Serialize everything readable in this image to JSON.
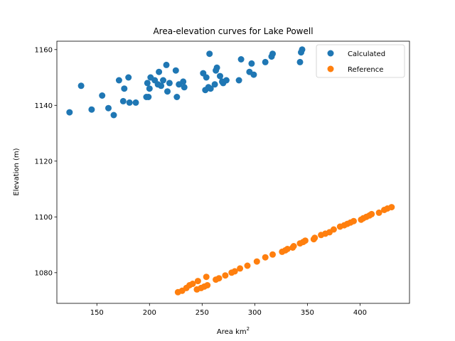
{
  "chart_data": {
    "type": "scatter",
    "title": "Area-elevation curves for Lake Powell",
    "xlabel": "Area km",
    "xlabel_superscript": "2",
    "ylabel": "Elevation (m)",
    "xlim": [
      112,
      447
    ],
    "ylim": [
      1069,
      1163
    ],
    "xticks": [
      150,
      200,
      250,
      300,
      350,
      400
    ],
    "yticks": [
      1080,
      1100,
      1120,
      1140,
      1160
    ],
    "grid": false,
    "legend_position": "top-right",
    "series": [
      {
        "name": "Calculated",
        "color": "#1f77b4",
        "points": [
          [
            124,
            1137.5
          ],
          [
            135,
            1147
          ],
          [
            145,
            1138.5
          ],
          [
            155,
            1143.5
          ],
          [
            161,
            1139
          ],
          [
            166,
            1136.5
          ],
          [
            171,
            1149
          ],
          [
            175,
            1141.5
          ],
          [
            176,
            1146
          ],
          [
            180,
            1150
          ],
          [
            181,
            1141
          ],
          [
            187,
            1141
          ],
          [
            197,
            1143
          ],
          [
            198,
            1148
          ],
          [
            199,
            1143
          ],
          [
            200,
            1146
          ],
          [
            201,
            1150
          ],
          [
            205,
            1149
          ],
          [
            208,
            1147.5
          ],
          [
            209,
            1152
          ],
          [
            211,
            1147
          ],
          [
            213,
            1149
          ],
          [
            216,
            1154.5
          ],
          [
            217,
            1145
          ],
          [
            219,
            1148
          ],
          [
            225,
            1152.5
          ],
          [
            226,
            1143
          ],
          [
            228,
            1147.5
          ],
          [
            232,
            1148.5
          ],
          [
            233,
            1146.5
          ],
          [
            251,
            1151.5
          ],
          [
            253,
            1145.5
          ],
          [
            254,
            1150
          ],
          [
            256,
            1146.5
          ],
          [
            257,
            1158.5
          ],
          [
            258,
            1146
          ],
          [
            262,
            1147.5
          ],
          [
            263,
            1152.5
          ],
          [
            264,
            1153.5
          ],
          [
            267,
            1150.5
          ],
          [
            269,
            1148.5
          ],
          [
            270,
            1148
          ],
          [
            273,
            1149
          ],
          [
            285,
            1149
          ],
          [
            287,
            1156.5
          ],
          [
            295,
            1152
          ],
          [
            297,
            1155
          ],
          [
            299,
            1151
          ],
          [
            310,
            1155.5
          ],
          [
            316,
            1157.5
          ],
          [
            317,
            1158.5
          ],
          [
            343,
            1155.5
          ],
          [
            344,
            1159
          ],
          [
            345,
            1160
          ]
        ]
      },
      {
        "name": "Reference",
        "color": "#ff7f0e",
        "points": [
          [
            227,
            1073
          ],
          [
            231,
            1073.5
          ],
          [
            235,
            1074.5
          ],
          [
            238,
            1075.5
          ],
          [
            241,
            1076
          ],
          [
            245,
            1074
          ],
          [
            246,
            1077
          ],
          [
            249,
            1074.5
          ],
          [
            252,
            1075
          ],
          [
            254,
            1078.5
          ],
          [
            255,
            1075.5
          ],
          [
            263,
            1077.5
          ],
          [
            266,
            1078
          ],
          [
            272,
            1079
          ],
          [
            278,
            1080
          ],
          [
            281,
            1080.5
          ],
          [
            286,
            1081.5
          ],
          [
            293,
            1082.5
          ],
          [
            302,
            1084
          ],
          [
            310,
            1085.5
          ],
          [
            317,
            1086.5
          ],
          [
            326,
            1087.5
          ],
          [
            329,
            1088
          ],
          [
            331,
            1088.5
          ],
          [
            336,
            1089
          ],
          [
            337,
            1089.5
          ],
          [
            343,
            1090.5
          ],
          [
            346,
            1091
          ],
          [
            348,
            1091.5
          ],
          [
            356,
            1092
          ],
          [
            357,
            1092.5
          ],
          [
            363,
            1093.5
          ],
          [
            367,
            1094
          ],
          [
            371,
            1094.5
          ],
          [
            375,
            1095.5
          ],
          [
            381,
            1096.5
          ],
          [
            385,
            1097
          ],
          [
            388,
            1097.5
          ],
          [
            391,
            1098
          ],
          [
            394,
            1098.5
          ],
          [
            401,
            1099
          ],
          [
            403,
            1099.5
          ],
          [
            406,
            1100
          ],
          [
            409,
            1100.5
          ],
          [
            411,
            1101
          ],
          [
            418,
            1101.5
          ],
          [
            423,
            1102.5
          ],
          [
            426,
            1103
          ],
          [
            430,
            1103.5
          ]
        ]
      }
    ]
  }
}
